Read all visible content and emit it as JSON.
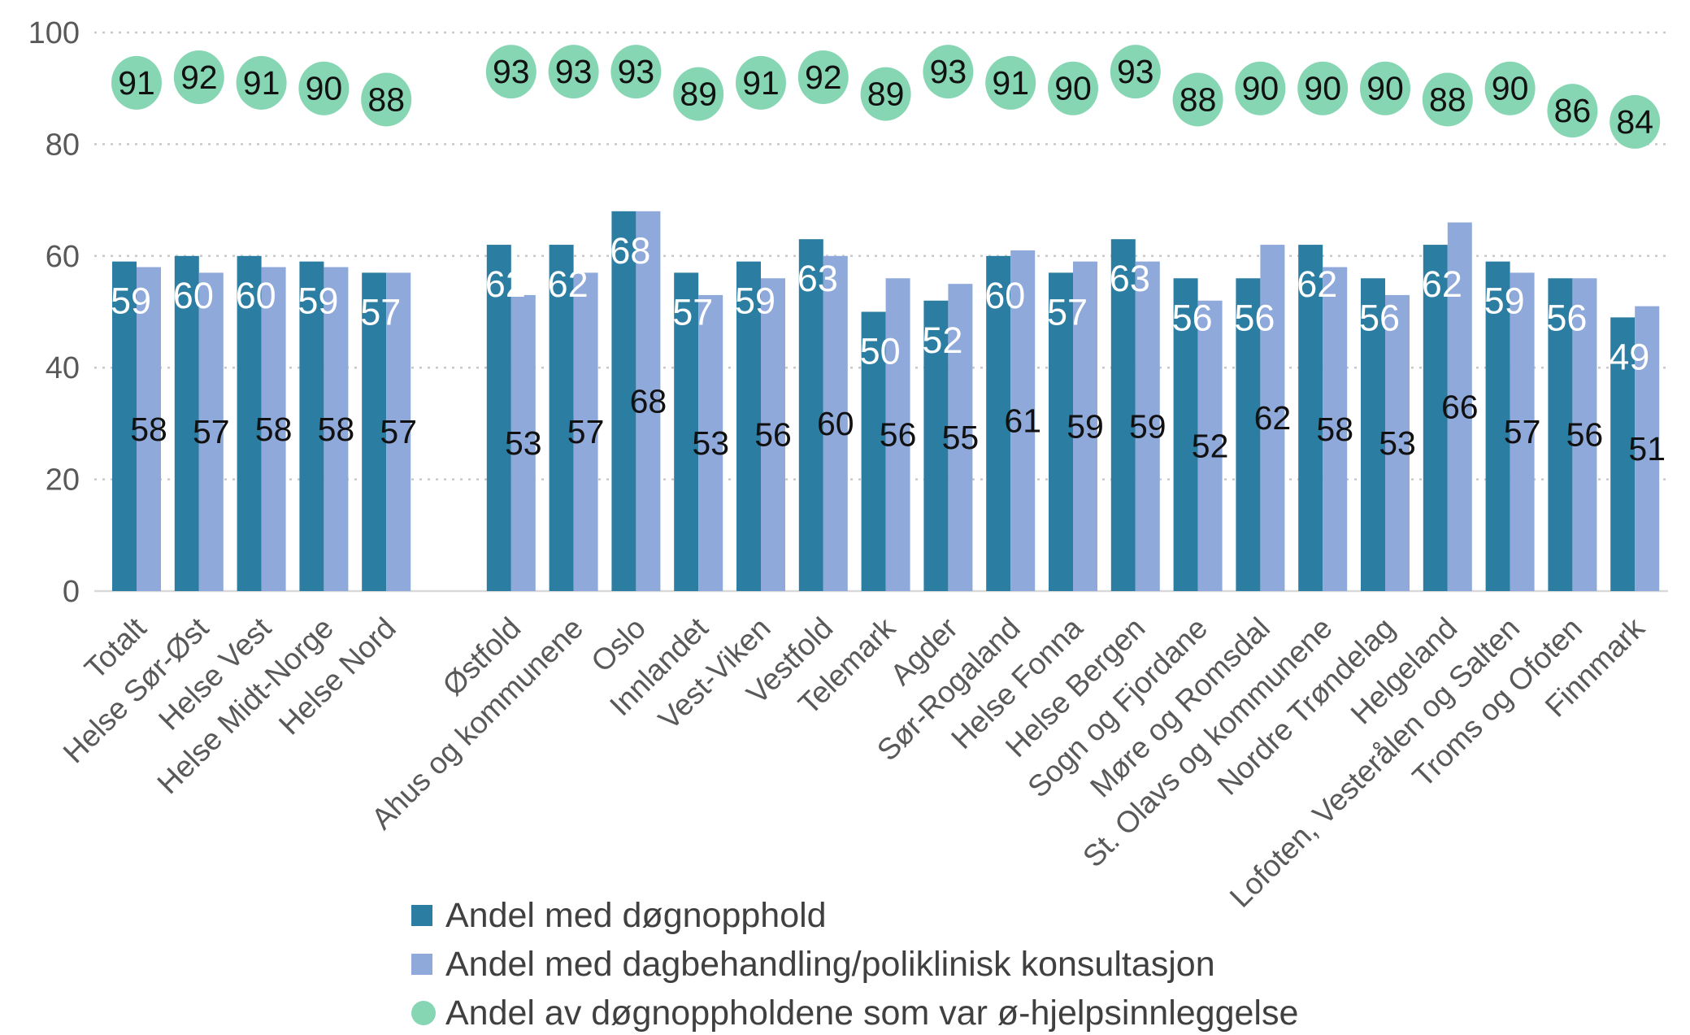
{
  "chart_data": {
    "type": "bar",
    "title": "",
    "categories": [
      "Totalt",
      "Helse Sør-Øst",
      "Helse Vest",
      "Helse Midt-Norge",
      "Helse Nord",
      "Østfold",
      "Ahus og kommunene",
      "Oslo",
      "Innlandet",
      "Vest-Viken",
      "Vestfold",
      "Telemark",
      "Agder",
      "Sør-Rogaland",
      "Helse Fonna",
      "Helse Bergen",
      "Sogn og Fjordane",
      "Møre og Romsdal",
      "St. Olavs og kommunene",
      "Nordre Trøndelag",
      "Helgeland",
      "Lofoten, Vesterålen og Salten",
      "Troms og Ofoten",
      "Finnmark"
    ],
    "group_break_after_index": 4,
    "series": [
      {
        "name": "Andel med døgnopphold",
        "type": "bar",
        "color_key": "dark",
        "values": [
          59,
          60,
          60,
          59,
          57,
          62,
          62,
          68,
          57,
          59,
          63,
          50,
          52,
          60,
          57,
          63,
          56,
          56,
          62,
          56,
          62,
          59,
          56,
          49
        ]
      },
      {
        "name": "Andel med dagbehandling/poliklinisk konsultasjon",
        "type": "bar",
        "color_key": "light",
        "values": [
          58,
          57,
          58,
          58,
          57,
          53,
          57,
          68,
          53,
          56,
          60,
          56,
          55,
          61,
          59,
          59,
          52,
          62,
          58,
          53,
          66,
          57,
          56,
          51
        ]
      },
      {
        "name": "Andel av døgnoppholdene som var ø-hjelpsinnleggelse",
        "type": "point",
        "color_key": "green",
        "values": [
          91,
          92,
          91,
          90,
          88,
          93,
          93,
          93,
          89,
          91,
          92,
          89,
          93,
          91,
          90,
          93,
          88,
          90,
          90,
          90,
          88,
          90,
          86,
          84
        ]
      }
    ],
    "y_axis": {
      "min": 0,
      "max": 100,
      "ticks": [
        0,
        20,
        40,
        60,
        80,
        100
      ],
      "gridlines": "dotted"
    },
    "legend": [
      {
        "label": "Andel med døgnopphold",
        "marker": "square",
        "color_key": "dark"
      },
      {
        "label": "Andel med dagbehandling/poliklinisk konsultasjon",
        "marker": "square",
        "color_key": "light"
      },
      {
        "label": "Andel av døgnoppholdene som var ø-hjelpsinnleggelse",
        "marker": "circle",
        "color_key": "green"
      }
    ],
    "legend_position": "bottom-left",
    "colors": {
      "dark": "#2B7DA1",
      "light": "#8FA9DA",
      "green": "#86D6B4",
      "grid": "#C9C9C9",
      "axis_line": "#D9D9D9",
      "axis_text": "#595959",
      "label_white": "#FFFFFF",
      "label_black": "#111111",
      "legend_text": "#404040"
    }
  }
}
